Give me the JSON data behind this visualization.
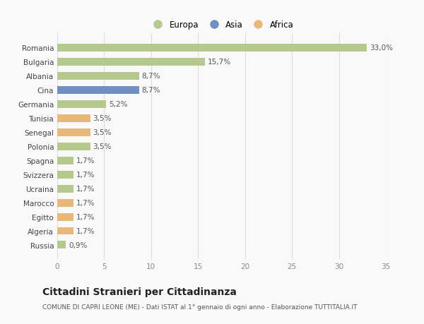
{
  "countries": [
    "Romania",
    "Bulgaria",
    "Albania",
    "Cina",
    "Germania",
    "Tunisia",
    "Senegal",
    "Polonia",
    "Spagna",
    "Svizzera",
    "Ucraina",
    "Marocco",
    "Egitto",
    "Algeria",
    "Russia"
  ],
  "values": [
    33.0,
    15.7,
    8.7,
    8.7,
    5.2,
    3.5,
    3.5,
    3.5,
    1.7,
    1.7,
    1.7,
    1.7,
    1.7,
    1.7,
    0.9
  ],
  "labels": [
    "33,0%",
    "15,7%",
    "8,7%",
    "8,7%",
    "5,2%",
    "3,5%",
    "3,5%",
    "3,5%",
    "1,7%",
    "1,7%",
    "1,7%",
    "1,7%",
    "1,7%",
    "1,7%",
    "0,9%"
  ],
  "continents": [
    "Europa",
    "Europa",
    "Europa",
    "Asia",
    "Europa",
    "Africa",
    "Africa",
    "Europa",
    "Europa",
    "Europa",
    "Europa",
    "Africa",
    "Africa",
    "Africa",
    "Europa"
  ],
  "colors": {
    "Europa": "#b5c98e",
    "Asia": "#7090c4",
    "Africa": "#e8b87a"
  },
  "xlim": [
    0,
    35
  ],
  "xticks": [
    0,
    5,
    10,
    15,
    20,
    25,
    30,
    35
  ],
  "title": "Cittadini Stranieri per Cittadinanza",
  "subtitle": "COMUNE DI CAPRI LEONE (ME) - Dati ISTAT al 1° gennaio di ogni anno - Elaborazione TUTTITALIA.IT",
  "bg_color": "#f9f9f9",
  "grid_color": "#dddddd",
  "bar_height": 0.55,
  "label_fontsize": 7.5,
  "tick_fontsize": 7.5,
  "title_fontsize": 10,
  "subtitle_fontsize": 6.5,
  "legend_order": [
    "Europa",
    "Asia",
    "Africa"
  ]
}
